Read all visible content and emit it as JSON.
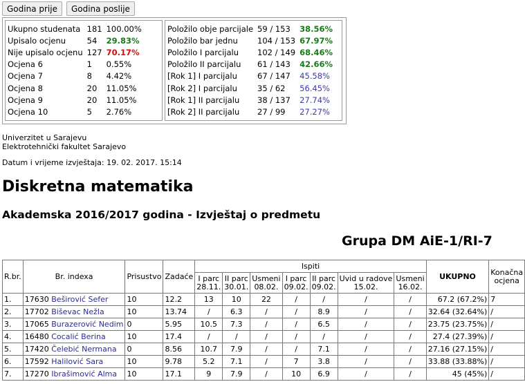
{
  "nav": {
    "prev_label": "Godina prije",
    "next_label": "Godina poslije"
  },
  "stats_left": [
    {
      "label": "Ukupno studenata",
      "count": "181",
      "pct": "100.00%",
      "style": ""
    },
    {
      "label": "Upisalo ocjenu",
      "count": "54",
      "pct": "29.83%",
      "style": "green"
    },
    {
      "label": "Nije upisalo ocjenu",
      "count": "127",
      "pct": "70.17%",
      "style": "red"
    },
    {
      "label": "Ocjena 6",
      "count": "1",
      "pct": "0.55%",
      "style": ""
    },
    {
      "label": "Ocjena 7",
      "count": "8",
      "pct": "4.42%",
      "style": ""
    },
    {
      "label": "Ocjena 8",
      "count": "20",
      "pct": "11.05%",
      "style": ""
    },
    {
      "label": "Ocjena 9",
      "count": "20",
      "pct": "11.05%",
      "style": ""
    },
    {
      "label": "Ocjena 10",
      "count": "5",
      "pct": "2.76%",
      "style": ""
    }
  ],
  "stats_right": [
    {
      "label": "Položilo obje parcijale",
      "count": "59 / 153",
      "pct": "38.56%",
      "style": "green"
    },
    {
      "label": "Položilo bar jednu",
      "count": "104 / 153",
      "pct": "67.97%",
      "style": "green"
    },
    {
      "label": "Položilo I parcijalu",
      "count": "102 / 149",
      "pct": "68.46%",
      "style": "green"
    },
    {
      "label": "Položilo II parcijalu",
      "count": "61 / 143",
      "pct": "42.66%",
      "style": "green"
    },
    {
      "label": "[Rok 1] I parcijalu",
      "count": "67 / 147",
      "pct": "45.58%",
      "style": "blue"
    },
    {
      "label": "[Rok 2] I parcijalu",
      "count": "35 / 62",
      "pct": "56.45%",
      "style": "blue"
    },
    {
      "label": "[Rok 1] II parcijalu",
      "count": "38 / 137",
      "pct": "27.74%",
      "style": "blue"
    },
    {
      "label": "[Rok 2] II parcijalu",
      "count": "27 / 99",
      "pct": "27.27%",
      "style": "blue"
    }
  ],
  "institution": {
    "university": "Univerzitet u Sarajevu",
    "faculty": "Elektrotehnički fakultet Sarajevo"
  },
  "report_datetime": "Datum i vrijeme izvještaja: 19. 02. 2017. 15:14",
  "course_title": "Diskretna matematika",
  "subtitle": "Akademska 2016/2017 godina - Izvještaj o predmetu",
  "group_title": "Grupa DM AiE-1/RI-7",
  "table": {
    "headers": {
      "rbr": "R.br.",
      "index": "Br. indexa",
      "attendance": "Prisustvo",
      "homework": "Zadaće",
      "exams": "Ispiti",
      "total": "UKUPNO",
      "final_grade": "Konačna ocjena"
    },
    "exam_headers": [
      {
        "line1": "I parc",
        "line2": "28.11."
      },
      {
        "line1": "II parc",
        "line2": "30.01."
      },
      {
        "line1": "Usmeni",
        "line2": "08.02."
      },
      {
        "line1": "I parc",
        "line2": "09.02."
      },
      {
        "line1": "II parc",
        "line2": "09.02."
      },
      {
        "line1": "Uvid u radove",
        "line2": "15.02."
      },
      {
        "line1": "Usmeni",
        "line2": "16.02."
      }
    ],
    "rows": [
      {
        "rbr": "1.",
        "index": "17630",
        "name": "Beširović Sefer",
        "attendance": "10",
        "homework": "12.2",
        "exams": [
          "13",
          "10",
          "22",
          "/",
          "/",
          "/",
          "/"
        ],
        "total": "67.2 (67.2%)",
        "grade": "7"
      },
      {
        "rbr": "2.",
        "index": "17702",
        "name": "Biševac Nežla",
        "attendance": "10",
        "homework": "13.74",
        "exams": [
          "/",
          "6.3",
          "/",
          "/",
          "8.9",
          "/",
          "/"
        ],
        "total": "32.64 (32.64%)",
        "grade": "/"
      },
      {
        "rbr": "3.",
        "index": "17065",
        "name": "Burazerović Nedim",
        "attendance": "0",
        "homework": "5.95",
        "exams": [
          "10.5",
          "7.3",
          "/",
          "/",
          "6.5",
          "/",
          "/"
        ],
        "total": "23.75 (23.75%)",
        "grade": "/"
      },
      {
        "rbr": "4.",
        "index": "16480",
        "name": "Cocalić Berina",
        "attendance": "10",
        "homework": "17.4",
        "exams": [
          "/",
          "/",
          "/",
          "/",
          "/",
          "/",
          "/"
        ],
        "total": "27.4 (27.39%)",
        "grade": "/"
      },
      {
        "rbr": "5.",
        "index": "17420",
        "name": "Čelebić Nermana",
        "attendance": "0",
        "homework": "8.56",
        "exams": [
          "10.7",
          "7.9",
          "/",
          "/",
          "7.1",
          "/",
          "/"
        ],
        "total": "27.16 (27.15%)",
        "grade": "/"
      },
      {
        "rbr": "6.",
        "index": "17592",
        "name": "Halilović Sara",
        "attendance": "10",
        "homework": "9.78",
        "exams": [
          "5.2",
          "7.1",
          "/",
          "7",
          "3.8",
          "/",
          "/"
        ],
        "total": "33.88 (33.88%)",
        "grade": "/"
      },
      {
        "rbr": "7.",
        "index": "17270",
        "name": "Ibrašimović Alma",
        "attendance": "10",
        "homework": "17.1",
        "exams": [
          "9",
          "7.9",
          "/",
          "10",
          "6.9",
          "/",
          "/"
        ],
        "total": "45 (45%)",
        "grade": "/"
      }
    ]
  }
}
